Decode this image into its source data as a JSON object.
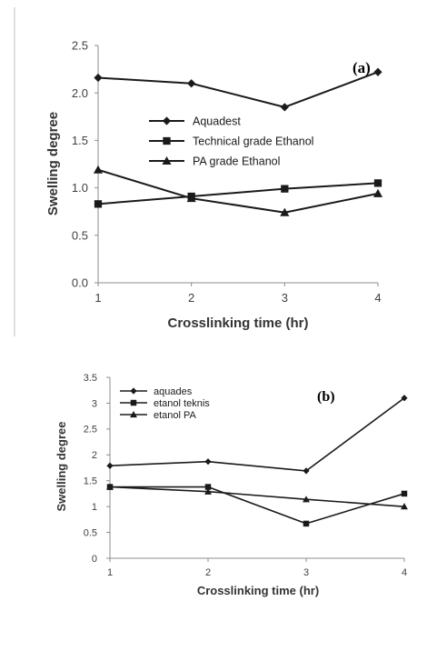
{
  "chart_data": [
    {
      "type": "line",
      "panel_label": "(a)",
      "xlabel": "Crosslinking time (hr)",
      "ylabel": "Swelling degree",
      "x": [
        1,
        2,
        3,
        4
      ],
      "x_ticks": [
        "1",
        "2",
        "3",
        "4"
      ],
      "ylim": [
        0,
        2.5
      ],
      "y_ticks": [
        "0.0",
        "0.5",
        "1.0",
        "1.5",
        "2.0",
        "2.5"
      ],
      "grid": false,
      "legend_position": "center",
      "series": [
        {
          "name": "Aquadest",
          "marker": "diamond",
          "values": [
            2.16,
            2.1,
            1.85,
            2.22
          ]
        },
        {
          "name": "Technical grade Ethanol",
          "marker": "square",
          "values": [
            0.83,
            0.91,
            0.99,
            1.05
          ]
        },
        {
          "name": "PA grade Ethanol",
          "marker": "triangle",
          "values": [
            1.19,
            0.89,
            0.74,
            0.94
          ]
        }
      ]
    },
    {
      "type": "line",
      "panel_label": "(b)",
      "xlabel": "Crosslinking time (hr)",
      "ylabel": "Swelling degree",
      "x": [
        1,
        2,
        3,
        4
      ],
      "x_ticks": [
        "1",
        "2",
        "3",
        "4"
      ],
      "ylim": [
        0,
        3.5
      ],
      "y_ticks": [
        "0",
        "0.5",
        "1",
        "1.5",
        "2",
        "2.5",
        "3",
        "3.5"
      ],
      "grid": false,
      "legend_position": "top-left",
      "series": [
        {
          "name": "aquades",
          "marker": "diamond",
          "values": [
            1.79,
            1.87,
            1.69,
            3.1
          ]
        },
        {
          "name": "etanol teknis",
          "marker": "square",
          "values": [
            1.38,
            1.38,
            0.67,
            1.25
          ]
        },
        {
          "name": "etanol PA",
          "marker": "triangle",
          "values": [
            1.38,
            1.29,
            1.14,
            1.0
          ]
        }
      ]
    }
  ],
  "colors": {
    "line": "#1a1a1a",
    "axis": "#8c8c8c",
    "divider": "#bfbfbf"
  }
}
